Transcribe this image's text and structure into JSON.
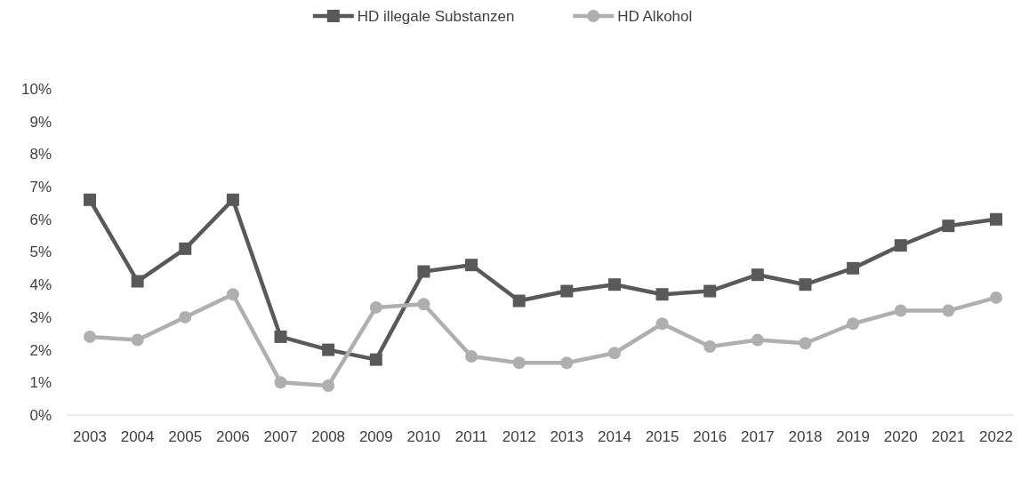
{
  "chart_data": {
    "type": "line",
    "categories": [
      "2003",
      "2004",
      "2005",
      "2006",
      "2007",
      "2008",
      "2009",
      "2010",
      "2011",
      "2012",
      "2013",
      "2014",
      "2015",
      "2016",
      "2017",
      "2018",
      "2019",
      "2020",
      "2021",
      "2022"
    ],
    "series": [
      {
        "name": "HD illegale Substanzen",
        "color": "#595959",
        "marker": "square",
        "values": [
          6.6,
          4.1,
          5.1,
          6.6,
          2.4,
          2.0,
          1.7,
          4.4,
          4.6,
          3.5,
          3.8,
          4.0,
          3.7,
          3.8,
          4.3,
          4.0,
          4.5,
          5.2,
          5.8,
          6.0
        ]
      },
      {
        "name": "HD Alkohol",
        "color": "#afafaf",
        "marker": "circle",
        "values": [
          2.4,
          2.3,
          3.0,
          3.7,
          1.0,
          0.9,
          3.3,
          3.4,
          1.8,
          1.6,
          1.6,
          1.9,
          2.8,
          2.1,
          2.3,
          2.2,
          2.8,
          3.2,
          3.2,
          3.6
        ]
      }
    ],
    "ylim": [
      0,
      10
    ],
    "yticks": [
      {
        "value": 0,
        "label": "0%"
      },
      {
        "value": 1,
        "label": "1%"
      },
      {
        "value": 2,
        "label": "2%"
      },
      {
        "value": 3,
        "label": "3%"
      },
      {
        "value": 4,
        "label": "4%"
      },
      {
        "value": 5,
        "label": "5%"
      },
      {
        "value": 6,
        "label": "6%"
      },
      {
        "value": 7,
        "label": "7%"
      },
      {
        "value": 8,
        "label": "8%"
      },
      {
        "value": 9,
        "label": "9%"
      },
      {
        "value": 10,
        "label": "10%"
      }
    ],
    "grid": false,
    "legend": "top",
    "line_style": "solid"
  }
}
